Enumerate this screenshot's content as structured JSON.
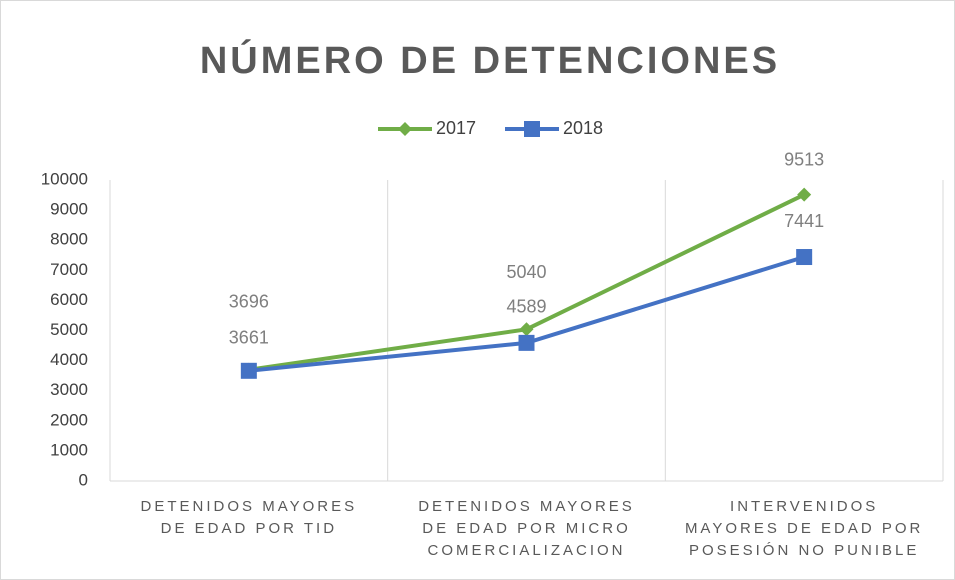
{
  "chart_data": {
    "type": "line",
    "title": "NÚMERO DE DETENCIONES",
    "categories": [
      "DETENIDOS MAYORES DE EDAD POR TID",
      "DETENIDOS MAYORES DE EDAD POR MICRO COMERCIALIZACION",
      "INTERVENIDOS MAYORES DE EDAD POR POSESIÓN NO PUNIBLE"
    ],
    "series": [
      {
        "name": "2017",
        "color": "#70ad47",
        "marker": "diamond",
        "values": [
          3696,
          5040,
          9513
        ]
      },
      {
        "name": "2018",
        "color": "#4472c4",
        "marker": "square",
        "values": [
          3661,
          4589,
          7441
        ]
      }
    ],
    "ylim": [
      0,
      10000
    ],
    "yticks": [
      0,
      1000,
      2000,
      3000,
      4000,
      5000,
      6000,
      7000,
      8000,
      9000,
      10000
    ],
    "grid": true,
    "legend": "top"
  }
}
